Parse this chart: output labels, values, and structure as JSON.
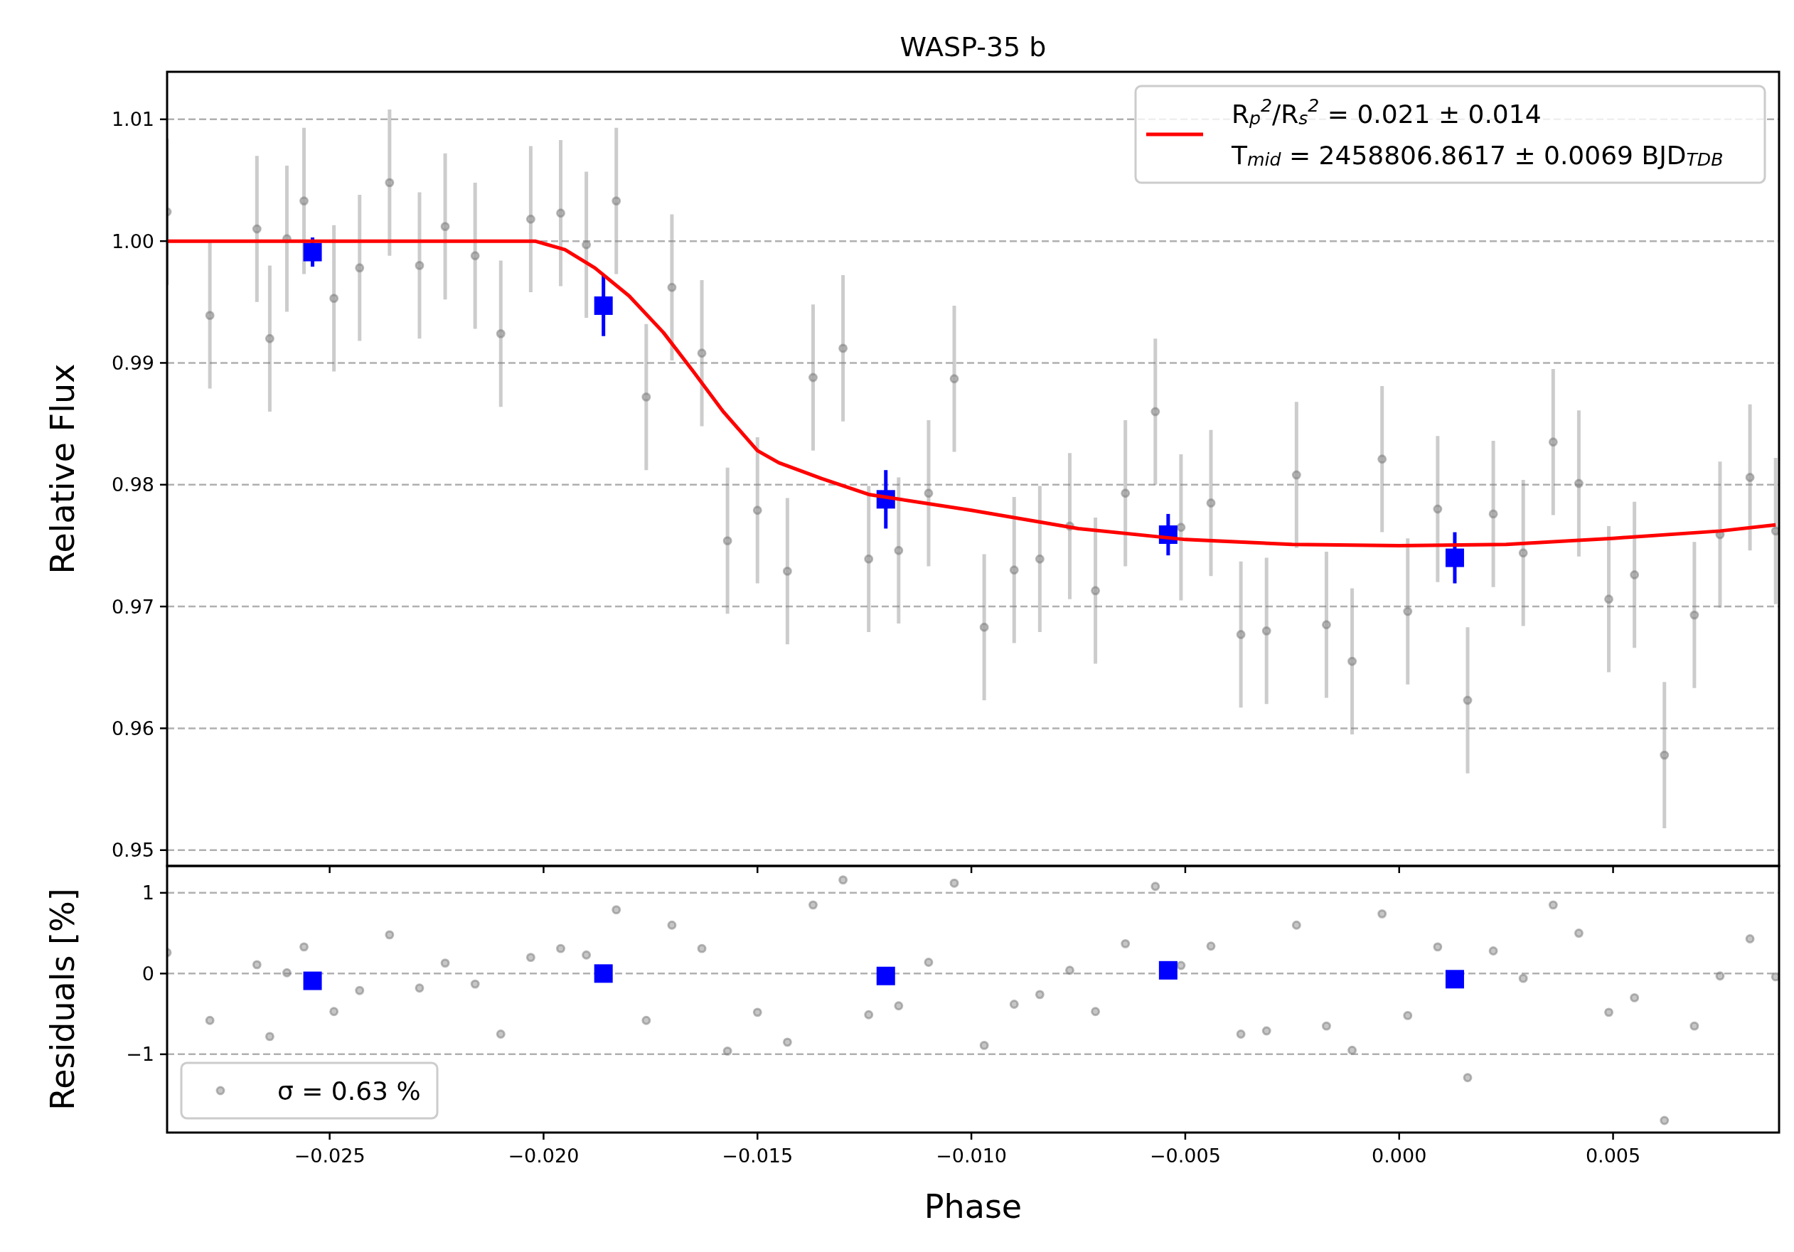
{
  "chart_data": [
    {
      "type": "scatter",
      "title": "WASP-35 b",
      "ylabel": "Relative Flux",
      "xlim": [
        -0.0288,
        0.00888
      ],
      "ylim": [
        0.9487,
        1.0139
      ],
      "xticks": [
        {
          "value": -0.025,
          "label": null
        },
        {
          "value": -0.02,
          "label": null
        },
        {
          "value": -0.015,
          "label": null
        },
        {
          "value": -0.01,
          "label": null
        },
        {
          "value": -0.005,
          "label": null
        },
        {
          "value": 0,
          "label": null
        },
        {
          "value": 0.005,
          "label": null
        }
      ],
      "yticks": [
        0.95,
        0.96,
        0.97,
        0.98,
        0.99,
        {
          "value": 1,
          "label": "1.00"
        },
        1.01
      ],
      "grid": "y",
      "legend": "top right",
      "tick_labels": "y",
      "series": [
        {
          "type": "scatter",
          "color": "#808080",
          "marker": "circle",
          "x": [
            -0.0288,
            -0.0278,
            -0.0267,
            -0.0264,
            -0.026,
            -0.0256,
            -0.0249,
            -0.0243,
            -0.0236,
            -0.0229,
            -0.0223,
            -0.0216,
            -0.021,
            -0.0203,
            -0.0196,
            -0.019,
            -0.0183,
            -0.0176,
            -0.017,
            -0.0163,
            -0.0157,
            -0.015,
            -0.0143,
            -0.0137,
            -0.013,
            -0.0124,
            -0.0117,
            -0.011,
            -0.0104,
            -0.0097,
            -0.009,
            -0.0084,
            -0.0077,
            -0.0071,
            -0.0064,
            -0.0057,
            -0.0051,
            -0.0044,
            -0.0037,
            -0.0031,
            -0.0024,
            -0.0017,
            -0.0011,
            -0.0004,
            0.0002,
            0.0009,
            0.0016,
            0.0022,
            0.0029,
            0.0036,
            0.0042,
            0.0049,
            0.0055,
            0.0062,
            0.0069,
            0.0075,
            0.0082,
            0.0088
          ],
          "values": [
            1.0024,
            0.9939,
            1.001,
            0.992,
            1.0002,
            1.0033,
            0.9953,
            0.9978,
            1.0048,
            0.998,
            1.0012,
            0.9988,
            0.9924,
            1.0018,
            1.0023,
            0.9997,
            1.0033,
            0.9872,
            0.9962,
            0.9908,
            0.9754,
            0.9779,
            0.9729,
            0.9888,
            0.9912,
            0.9739,
            0.9746,
            0.9793,
            0.9887,
            0.9683,
            0.973,
            0.9739,
            0.9766,
            0.9713,
            0.9793,
            0.986,
            0.9765,
            0.9785,
            0.9677,
            0.968,
            0.9808,
            0.9685,
            0.9655,
            0.9821,
            0.9696,
            0.978,
            0.9623,
            0.9776,
            0.9744,
            0.9835,
            0.9801,
            0.9706,
            0.9726,
            0.9578,
            0.9693,
            0.9759,
            0.9806,
            0.9762
          ],
          "errors": [
            0.006,
            0.006,
            0.006,
            0.006,
            0.006,
            0.006,
            0.006,
            0.006,
            0.006,
            0.006,
            0.006,
            0.006,
            0.006,
            0.006,
            0.006,
            0.006,
            0.006,
            0.006,
            0.006,
            0.006,
            0.006,
            0.006,
            0.006,
            0.006,
            0.006,
            0.006,
            0.006,
            0.006,
            0.006,
            0.006,
            0.006,
            0.006,
            0.006,
            0.006,
            0.006,
            0.006,
            0.006,
            0.006,
            0.006,
            0.006,
            0.006,
            0.006,
            0.006,
            0.006,
            0.006,
            0.006,
            0.006,
            0.006,
            0.006,
            0.006,
            0.006,
            0.006,
            0.006,
            0.006,
            0.006,
            0.006,
            0.006,
            0.006
          ]
        },
        {
          "type": "scatter",
          "color": "#0000ff",
          "marker": "square",
          "x": [
            -0.0254,
            -0.0186,
            -0.012,
            -0.0054,
            0.0013
          ],
          "values": [
            0.9991,
            0.9947,
            0.9788,
            0.9759,
            0.974
          ],
          "errors": [
            0.0012,
            0.0025,
            0.0024,
            0.0017,
            0.0021
          ]
        },
        {
          "type": "line",
          "color": "#ff0000",
          "name": "R$_{p}$$^{2}$/R$_{s}$$^{2}$ = 0.021 ± 0.014\nT$_{mid}$ = 2458806.8617 ± 0.0069 BJD$_{TDB}$",
          "x": [
            -0.0288,
            -0.0202,
            -0.0195,
            -0.0188,
            -0.018,
            -0.0172,
            -0.0165,
            -0.0158,
            -0.015,
            -0.0145,
            -0.0135,
            -0.0124,
            -0.01,
            -0.0075,
            -0.005,
            -0.0025,
            0,
            0.0025,
            0.005,
            0.0075,
            0.0088
          ],
          "values": [
            1.0,
            1.0,
            0.9993,
            0.9978,
            0.9955,
            0.9925,
            0.9893,
            0.986,
            0.9828,
            0.9818,
            0.9805,
            0.9792,
            0.9779,
            0.9764,
            0.9755,
            0.9751,
            0.975,
            0.9751,
            0.9756,
            0.9762,
            0.9767
          ]
        }
      ]
    },
    {
      "type": "scatter",
      "xlabel": "Phase",
      "ylabel": "Residuals [%]",
      "xlim": [
        -0.0288,
        0.00888
      ],
      "ylim": [
        -1.97,
        1.333
      ],
      "xticks": [
        {
          "value": -0.025,
          "label": "−0.025"
        },
        {
          "value": -0.02,
          "label": "−0.020"
        },
        {
          "value": -0.015,
          "label": "−0.015"
        },
        {
          "value": -0.01,
          "label": "−0.010"
        },
        {
          "value": -0.005,
          "label": "−0.005"
        },
        {
          "value": 0,
          "label": "0.000"
        },
        0.005
      ],
      "yticks": [
        {
          "value": -1,
          "label": "−1"
        },
        0,
        1
      ],
      "grid": "y",
      "legend": "bottom left",
      "series": [
        {
          "type": "scatter",
          "color": "#808080",
          "marker": "circle",
          "name": "σ = 0.63 %",
          "x": [
            -0.0288,
            -0.0278,
            -0.0267,
            -0.0264,
            -0.026,
            -0.0256,
            -0.0249,
            -0.0243,
            -0.0236,
            -0.0229,
            -0.0223,
            -0.0216,
            -0.021,
            -0.0203,
            -0.0196,
            -0.019,
            -0.0183,
            -0.0176,
            -0.017,
            -0.0163,
            -0.0157,
            -0.015,
            -0.0143,
            -0.0137,
            -0.013,
            -0.0124,
            -0.0117,
            -0.011,
            -0.0104,
            -0.0097,
            -0.009,
            -0.0084,
            -0.0077,
            -0.0071,
            -0.0064,
            -0.0057,
            -0.0051,
            -0.0044,
            -0.0037,
            -0.0031,
            -0.0024,
            -0.0017,
            -0.0011,
            -0.0004,
            0.0002,
            0.0009,
            0.0016,
            0.0022,
            0.0029,
            0.0036,
            0.0042,
            0.0049,
            0.0055,
            0.0062,
            0.0069,
            0.0075,
            0.0082,
            0.0088
          ],
          "values": [
            0.26,
            -0.58,
            0.11,
            -0.78,
            0.01,
            0.33,
            -0.47,
            -0.21,
            0.48,
            -0.18,
            0.13,
            -0.13,
            -0.75,
            0.2,
            0.31,
            0.23,
            0.79,
            -0.58,
            0.6,
            0.31,
            -0.96,
            -0.48,
            -0.85,
            0.85,
            1.16,
            -0.51,
            -0.4,
            0.14,
            1.12,
            -0.89,
            -0.38,
            -0.26,
            0.04,
            -0.47,
            0.37,
            1.08,
            0.1,
            0.34,
            -0.75,
            -0.71,
            0.6,
            -0.65,
            -0.95,
            0.74,
            -0.52,
            0.33,
            -1.29,
            0.28,
            -0.06,
            0.85,
            0.5,
            -0.48,
            -0.3,
            -1.82,
            -0.65,
            -0.03,
            0.43,
            -0.04
          ]
        },
        {
          "type": "scatter",
          "color": "#0000ff",
          "marker": "square",
          "x": [
            -0.0254,
            -0.0186,
            -0.012,
            -0.0054,
            0.0013
          ],
          "values": [
            -0.09,
            0.0,
            -0.03,
            0.04,
            -0.07
          ]
        }
      ]
    }
  ]
}
